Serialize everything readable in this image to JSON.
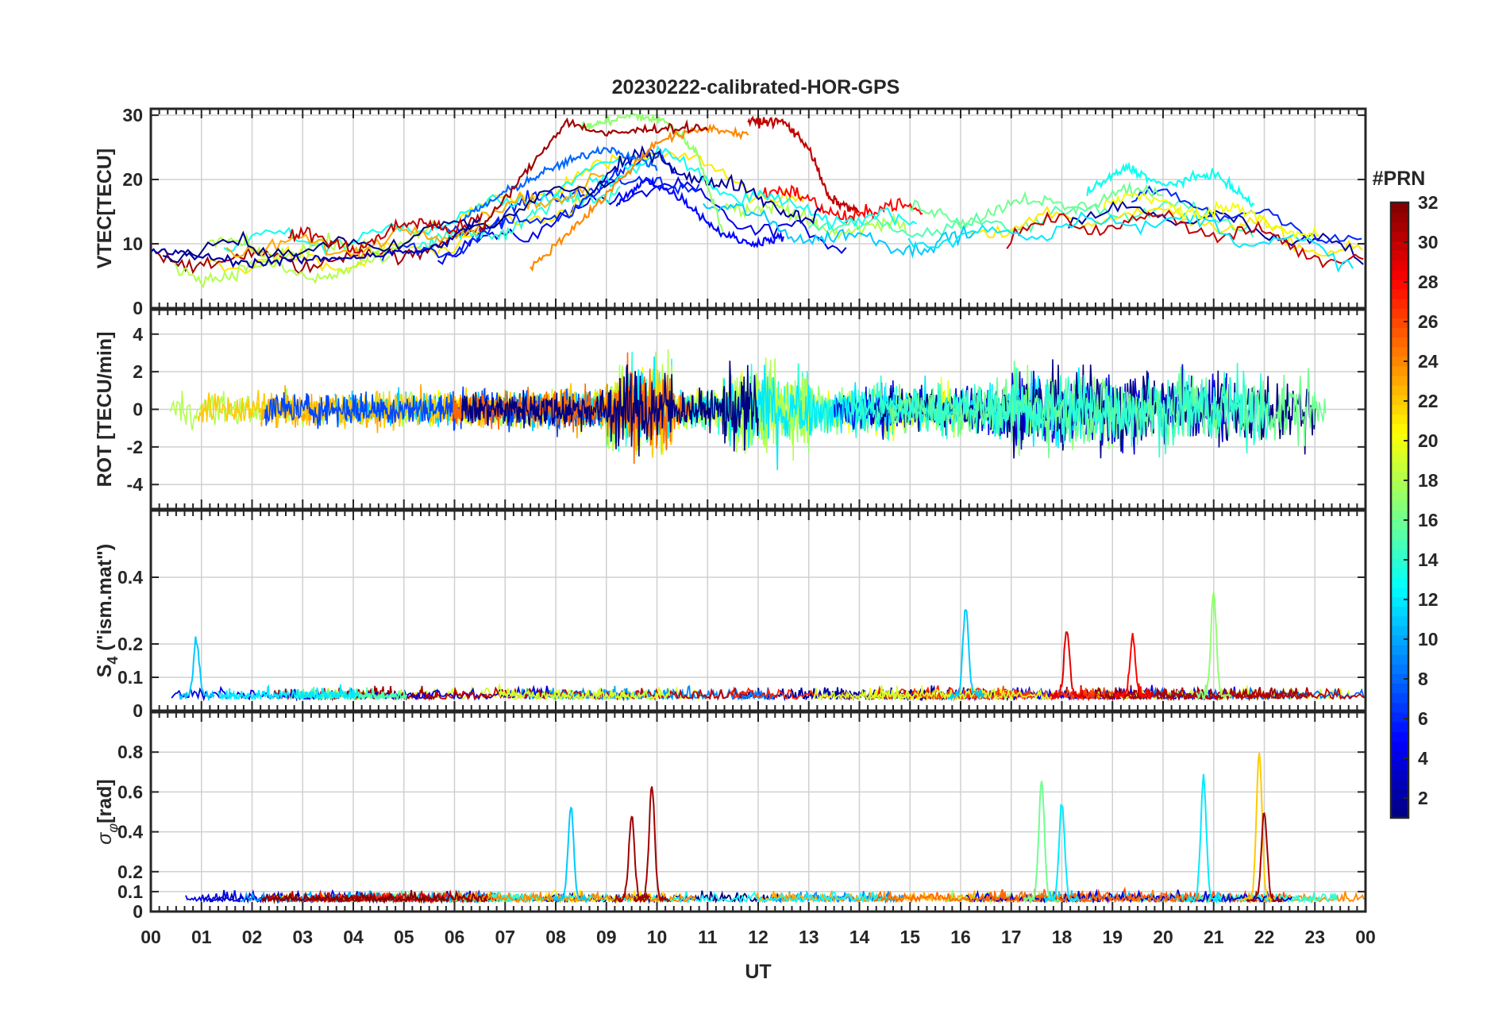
{
  "chart_data": {
    "type": "line",
    "title": "20230222-calibrated-HOR-GPS",
    "xlabel": "UT",
    "x_ticks": [
      "00",
      "01",
      "02",
      "03",
      "04",
      "05",
      "06",
      "07",
      "08",
      "09",
      "10",
      "11",
      "12",
      "13",
      "14",
      "15",
      "16",
      "17",
      "18",
      "19",
      "20",
      "21",
      "22",
      "23",
      "00"
    ],
    "xlim": [
      0,
      24
    ],
    "grid": true,
    "colorbar": {
      "label": "#PRN",
      "range": [
        1,
        32
      ],
      "ticks": [
        2,
        4,
        6,
        8,
        10,
        12,
        14,
        16,
        18,
        20,
        22,
        24,
        26,
        28,
        30,
        32
      ],
      "colormap": "jet"
    },
    "panels": [
      {
        "id": "vtec",
        "ylabel": "VTEC[TECU]",
        "ylim": [
          0,
          31
        ],
        "y_ticks": [
          0,
          10,
          20,
          30
        ],
        "baseline": {
          "00": 8,
          "04": 8,
          "06": 11,
          "08": 16,
          "10": 22,
          "12": 15,
          "14": 12,
          "16": 12,
          "18": 14,
          "20": 15,
          "22": 12,
          "24": 8
        },
        "series": [
          {
            "prn": 2,
            "x": [
              0,
              2,
              4,
              5.5,
              6,
              6.5
            ],
            "y": [
              9,
              7,
              8,
              9,
              11,
              14
            ]
          },
          {
            "prn": 5,
            "x": [
              9.2,
              9.8,
              10.5,
              11.2,
              11.8,
              12.5
            ],
            "y": [
              16,
              20,
              17,
              12,
              10,
              11
            ]
          },
          {
            "prn": 8,
            "x": [
              6.2,
              7,
              8,
              9,
              10
            ],
            "y": [
              14,
              18,
              22,
              25,
              22
            ]
          },
          {
            "prn": 17,
            "x": [
              8.5,
              9.5,
              10.2,
              10.8,
              11.3
            ],
            "y": [
              28,
              30,
              29,
              24,
              12
            ]
          },
          {
            "prn": 24,
            "x": [
              7.5,
              8.8,
              10,
              11,
              11.8
            ],
            "y": [
              6,
              16,
              26,
              28,
              27
            ]
          },
          {
            "prn": 31,
            "x": [
              6.5,
              7.5,
              8.2,
              9,
              10,
              11
            ],
            "y": [
              12,
              22,
              29,
              27,
              28,
              28
            ]
          },
          {
            "prn": 30,
            "x": [
              11.8,
              12.5,
              13,
              13.4,
              14
            ],
            "y": [
              29,
              29,
              25,
              17,
              15
            ]
          },
          {
            "prn": 13,
            "x": [
              18.5,
              19.3,
              20,
              21,
              21.8
            ],
            "y": [
              18,
              22,
              19,
              21,
              16
            ]
          }
        ]
      },
      {
        "id": "rot",
        "ylabel": "ROT [TECU/min]",
        "ylim": [
          -5.3,
          5.3
        ],
        "y_ticks": [
          -4,
          -2,
          0,
          2,
          4
        ],
        "activity": {
          "00-07": "moderate",
          "09-10": "high",
          "11-13": "high",
          "17-23": "high"
        }
      },
      {
        "id": "s4",
        "ylabel": "S4 (\"ism.mat\")",
        "ylabel_main": "S",
        "ylabel_sub": "4",
        "ylabel_rest": " (\"ism.mat\")",
        "ylim": [
          0,
          0.6
        ],
        "y_ticks": [
          0,
          0.1,
          0.2,
          0.4
        ],
        "peaks": [
          {
            "x": 0.9,
            "y": 0.2,
            "prn": 11
          },
          {
            "x": 16.1,
            "y": 0.3,
            "prn": 11
          },
          {
            "x": 18.1,
            "y": 0.23,
            "prn": 29
          },
          {
            "x": 19.4,
            "y": 0.21,
            "prn": 28
          },
          {
            "x": 21.0,
            "y": 0.34,
            "prn": 17
          }
        ]
      },
      {
        "id": "sigma_phi",
        "ylabel": "σφ[rad]",
        "ylabel_main": "σ",
        "ylabel_sub": "φ",
        "ylabel_rest": "[rad]",
        "ylim": [
          0,
          1.0
        ],
        "y_ticks": [
          0,
          0.1,
          0.2,
          0.4,
          0.6,
          0.8
        ],
        "peaks": [
          {
            "x": 8.3,
            "y": 0.52,
            "prn": 11
          },
          {
            "x": 9.5,
            "y": 0.47,
            "prn": 31
          },
          {
            "x": 9.9,
            "y": 0.62,
            "prn": 31
          },
          {
            "x": 17.6,
            "y": 0.64,
            "prn": 16
          },
          {
            "x": 18.0,
            "y": 0.53,
            "prn": 12
          },
          {
            "x": 20.8,
            "y": 0.66,
            "prn": 12
          },
          {
            "x": 21.9,
            "y": 0.79,
            "prn": 22
          },
          {
            "x": 22.0,
            "y": 0.49,
            "prn": 31
          }
        ]
      }
    ]
  }
}
